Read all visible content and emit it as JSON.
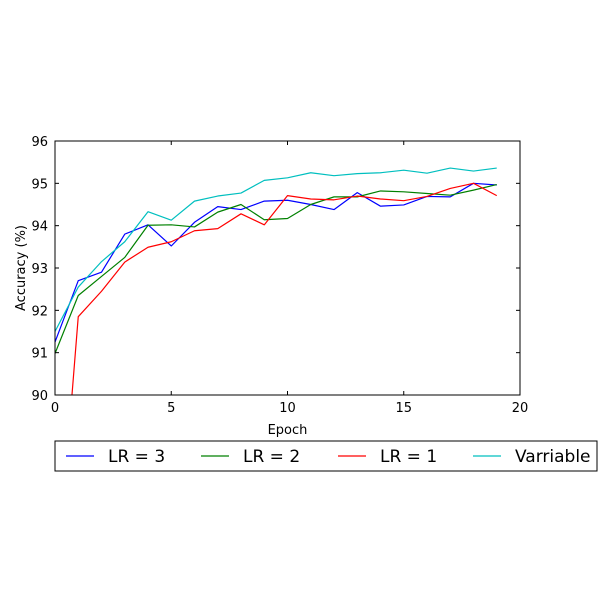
{
  "chart_data": {
    "type": "line",
    "xlabel": "Epoch",
    "ylabel": "Accuracy (%)",
    "xlim": [
      0,
      20
    ],
    "ylim": [
      90,
      96
    ],
    "xticks": [
      0,
      5,
      10,
      15,
      20
    ],
    "yticks": [
      90,
      91,
      92,
      93,
      94,
      95,
      96
    ],
    "grid": false,
    "legend_position": "bottom",
    "legend_columns": 4,
    "x": [
      0,
      1,
      2,
      3,
      4,
      5,
      6,
      7,
      8,
      9,
      10,
      11,
      12,
      13,
      14,
      15,
      16,
      17,
      18,
      19
    ],
    "series": [
      {
        "name": "LR = 3",
        "color": "#0000ff",
        "values": [
          91.25,
          92.7,
          92.9,
          93.8,
          94.02,
          93.52,
          94.08,
          94.45,
          94.38,
          94.58,
          94.6,
          94.5,
          94.38,
          94.78,
          94.46,
          94.49,
          94.69,
          94.68,
          95.0,
          94.96
        ]
      },
      {
        "name": "LR = 2",
        "color": "#008000",
        "values": [
          90.98,
          92.35,
          92.8,
          93.25,
          94.01,
          94.02,
          93.97,
          94.32,
          94.5,
          94.14,
          94.17,
          94.5,
          94.68,
          94.68,
          94.82,
          94.8,
          94.76,
          94.72,
          94.84,
          94.97
        ]
      },
      {
        "name": "LR = 1",
        "color": "#ff0000",
        "values": [
          85.0,
          91.85,
          92.45,
          93.14,
          93.49,
          93.62,
          93.88,
          93.93,
          94.28,
          94.02,
          94.71,
          94.63,
          94.61,
          94.7,
          94.63,
          94.59,
          94.69,
          94.88,
          95.0,
          94.71
        ]
      },
      {
        "name": "Varriable",
        "color": "#00bfbf",
        "values": [
          91.5,
          92.55,
          93.15,
          93.62,
          94.33,
          94.13,
          94.58,
          94.7,
          94.77,
          95.07,
          95.13,
          95.25,
          95.18,
          95.23,
          95.25,
          95.31,
          95.24,
          95.36,
          95.29,
          95.36
        ]
      }
    ]
  }
}
